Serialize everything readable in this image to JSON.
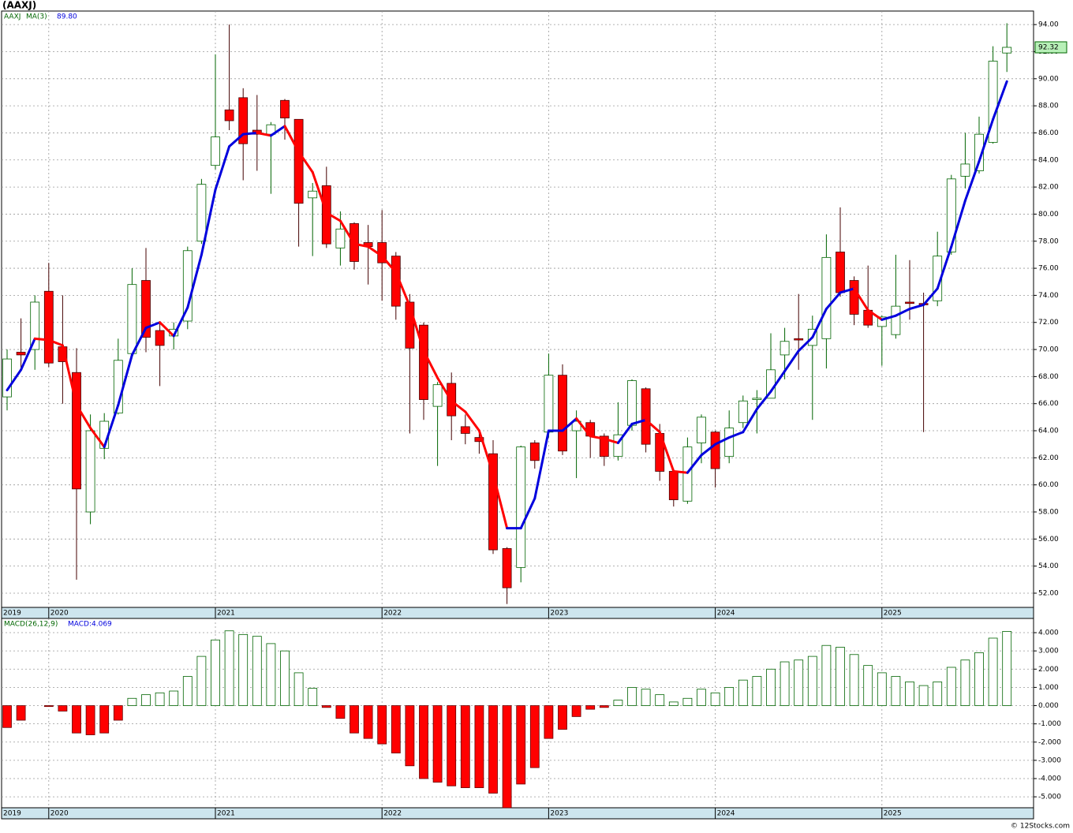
{
  "footer": "© 12Stocks.com",
  "chart_data": [
    {
      "type": "candlestick",
      "title": "(AAXJ)",
      "symbol": "AAXJ",
      "categories": [
        "2019",
        null,
        null,
        "2020",
        null,
        null,
        null,
        null,
        null,
        null,
        null,
        null,
        null,
        null,
        null,
        "2021",
        null,
        null,
        null,
        null,
        null,
        null,
        null,
        null,
        null,
        null,
        null,
        "2022",
        null,
        null,
        null,
        null,
        null,
        null,
        null,
        null,
        null,
        null,
        null,
        "2023",
        null,
        null,
        null,
        null,
        null,
        null,
        null,
        null,
        null,
        null,
        null,
        "2024",
        null,
        null,
        null,
        null,
        null,
        null,
        null,
        null,
        null,
        null,
        null,
        "2025",
        null,
        null,
        null,
        null,
        null,
        null,
        null,
        null,
        null
      ],
      "open": [
        66.5,
        69.8,
        70,
        74.3,
        70.2,
        68.3,
        58,
        62.7,
        65.3,
        69.7,
        75.1,
        71.4,
        71,
        72.1,
        78,
        83.6,
        87.7,
        88.6,
        86.2,
        85.9,
        88.4,
        87,
        81.2,
        82.1,
        77.5,
        79.3,
        77.9,
        77.9,
        76.9,
        73.5,
        71.8,
        65.8,
        67.5,
        64.3,
        63.5,
        62.3,
        55.3,
        53.9,
        63.1,
        63.9,
        68.1,
        64,
        64.6,
        63.6,
        62.1,
        64.4,
        67.1,
        63.8,
        61,
        58.8,
        63.1,
        63.9,
        62.1,
        64.6,
        66.3,
        66.4,
        69.6,
        70.8,
        70.3,
        70.8,
        77.2,
        75.1,
        72.9,
        71.7,
        71.1,
        73.5,
        73.4,
        73.6,
        77.2,
        82.8,
        83.2,
        85.3,
        91.9
      ],
      "high": [
        70,
        72.3,
        74,
        76.4,
        74,
        70.1,
        65.2,
        65.3,
        70.8,
        76,
        77.5,
        72,
        72,
        77.6,
        82.6,
        91.8,
        94,
        89.3,
        88.8,
        86.8,
        88.5,
        87,
        82.3,
        83.5,
        80.2,
        79.4,
        79.2,
        80.3,
        77.2,
        74.1,
        72,
        67.6,
        68.3,
        65.2,
        64,
        63.3,
        55.4,
        62.9,
        63.3,
        69.7,
        68.9,
        65.5,
        64.8,
        63.8,
        66.1,
        67.8,
        67.2,
        64.5,
        61.2,
        63.5,
        65.2,
        64,
        65.5,
        66.6,
        67,
        71.2,
        71.6,
        74.1,
        72.5,
        78.5,
        80.5,
        75.4,
        76.2,
        72.5,
        77,
        76.6,
        74.2,
        78.7,
        82.9,
        86,
        87.2,
        92.4,
        94.1
      ],
      "low": [
        65.5,
        68.5,
        68.5,
        68.7,
        66,
        53,
        57.1,
        61.9,
        65.2,
        69.5,
        69.8,
        67.3,
        70,
        71.5,
        77.8,
        83.3,
        86.2,
        82.5,
        83.2,
        81.5,
        85.5,
        77.6,
        76.9,
        77.5,
        76.2,
        75.9,
        74.8,
        73.6,
        72.2,
        63.8,
        64.8,
        61.4,
        63.3,
        63,
        62.3,
        54.9,
        51.2,
        52.8,
        61.2,
        63.5,
        62.2,
        60.5,
        62,
        61.4,
        61.8,
        64,
        62.4,
        60.3,
        58.4,
        58.6,
        61.6,
        59.8,
        61.6,
        64.2,
        63.8,
        66.4,
        67.8,
        68.5,
        64.8,
        68.6,
        73.9,
        71.8,
        71.6,
        68.8,
        70.8,
        72.2,
        63.9,
        73.2,
        77,
        81.9,
        83,
        85.2,
        90.5
      ],
      "close": [
        69.3,
        69.6,
        73.5,
        69,
        69.1,
        59.7,
        64,
        64.7,
        69.2,
        74.8,
        70.9,
        70.3,
        71.5,
        77.3,
        82.2,
        85.7,
        86.9,
        85.2,
        85.9,
        86.6,
        87.1,
        80.8,
        81.7,
        77.8,
        78.9,
        76.5,
        77.6,
        76.4,
        73.2,
        70.1,
        66.3,
        67.4,
        65.1,
        63.8,
        63.2,
        55.2,
        52.4,
        62.8,
        61.8,
        68.1,
        62.5,
        64.7,
        63.6,
        62.1,
        63.7,
        67.7,
        63,
        61,
        58.9,
        62.8,
        65,
        61.2,
        64.2,
        66.2,
        66.4,
        68.5,
        70.6,
        70.7,
        71.5,
        76.8,
        74.2,
        72.6,
        71.8,
        72.4,
        73.2,
        73.4,
        73.3,
        76.9,
        82.6,
        83.7,
        85.9,
        91.3,
        92.32
      ],
      "last_label": "92.32",
      "colors": {
        "up": "#006400",
        "down": "#ff0000",
        "ma_up": "#0000dd",
        "ma_down": "#ff0000"
      },
      "ma": {
        "name": "MA(3)",
        "value_label": "89.80",
        "values": [
          67,
          68.5,
          70.8,
          70.7,
          70.3,
          65.9,
          64.2,
          62.8,
          65.9,
          69.6,
          71.6,
          72,
          71,
          73.1,
          77,
          81.8,
          85,
          85.9,
          86,
          85.8,
          86.5,
          84.6,
          83.1,
          80.1,
          79.5,
          77.8,
          77.6,
          76.9,
          75.7,
          73.2,
          69.9,
          67.9,
          66.2,
          65.4,
          64,
          60.8,
          56.8,
          56.8,
          59,
          64,
          64,
          64.9,
          63.6,
          63.4,
          63.1,
          64.5,
          64.8,
          63.9,
          61,
          60.9,
          62.2,
          63,
          63.5,
          63.9,
          65.6,
          66.9,
          68.4,
          69.9,
          70.9,
          73,
          74.2,
          74.5,
          72.9,
          72.2,
          72.5,
          73,
          73.3,
          74.5,
          77.6,
          81,
          83.9,
          87,
          89.8
        ]
      },
      "ylim": [
        50.95,
        95
      ],
      "yticks": [
        {
          "value": 52,
          "label": "52.00"
        },
        {
          "value": 54,
          "label": "54.00"
        },
        {
          "value": 56,
          "label": "56.00"
        },
        {
          "value": 58,
          "label": "58.00"
        },
        {
          "value": 60,
          "label": "60.00"
        },
        {
          "value": 62,
          "label": "62.00"
        },
        {
          "value": 64,
          "label": "64.00"
        },
        {
          "value": 66,
          "label": "66.00"
        },
        {
          "value": 68,
          "label": "68.00"
        },
        {
          "value": 70,
          "label": "70.00"
        },
        {
          "value": 72,
          "label": "72.00"
        },
        {
          "value": 74,
          "label": "74.00"
        },
        {
          "value": 76,
          "label": "76.00"
        },
        {
          "value": 78,
          "label": "78.00"
        },
        {
          "value": 80,
          "label": "80.00"
        },
        {
          "value": 82,
          "label": "82.00"
        },
        {
          "value": 84,
          "label": "84.00"
        },
        {
          "value": 86,
          "label": "86.00"
        },
        {
          "value": 88,
          "label": "88.00"
        },
        {
          "value": 90,
          "label": "90.00"
        },
        {
          "value": 92,
          "label": "92.00"
        },
        {
          "value": 94,
          "label": "94.00"
        }
      ],
      "grid": true
    },
    {
      "type": "histogram",
      "title": "MACD(26,12,9)",
      "value_label": "MACD:4.069",
      "categories": [
        "2019",
        null,
        null,
        "2020",
        null,
        null,
        null,
        null,
        null,
        null,
        null,
        null,
        null,
        null,
        null,
        "2021",
        null,
        null,
        null,
        null,
        null,
        null,
        null,
        null,
        null,
        null,
        null,
        "2022",
        null,
        null,
        null,
        null,
        null,
        null,
        null,
        null,
        null,
        null,
        null,
        "2023",
        null,
        null,
        null,
        null,
        null,
        null,
        null,
        null,
        null,
        null,
        null,
        "2024",
        null,
        null,
        null,
        null,
        null,
        null,
        null,
        null,
        null,
        null,
        null,
        "2025",
        null,
        null,
        null,
        null,
        null,
        null,
        null,
        null,
        null
      ],
      "values": [
        -1.2,
        -0.8,
        0,
        -0.05,
        -0.3,
        -1.5,
        -1.6,
        -1.5,
        -0.8,
        0.4,
        0.6,
        0.7,
        0.8,
        1.6,
        2.7,
        3.6,
        4.1,
        3.9,
        3.8,
        3.4,
        3,
        1.8,
        0.95,
        -0.1,
        -0.7,
        -1.5,
        -1.8,
        -2.1,
        -2.6,
        -3.3,
        -4,
        -4.2,
        -4.4,
        -4.5,
        -4.5,
        -4.8,
        -5.6,
        -4.3,
        -3.4,
        -1.8,
        -1.3,
        -0.6,
        -0.2,
        -0.1,
        0.3,
        1,
        0.9,
        0.6,
        0.2,
        0.4,
        0.9,
        0.7,
        1,
        1.4,
        1.6,
        2,
        2.4,
        2.5,
        2.7,
        3.3,
        3.2,
        2.8,
        2.2,
        1.8,
        1.6,
        1.3,
        1.1,
        1.3,
        2.1,
        2.5,
        2.9,
        3.7,
        4.069
      ],
      "colors": {
        "up": "#006400",
        "down": "#ff0000"
      },
      "ylim": [
        -5.6,
        4.78
      ],
      "yticks": [
        {
          "value": -5,
          "label": "-5.000"
        },
        {
          "value": -4,
          "label": "-4.000"
        },
        {
          "value": -3,
          "label": "-3.000"
        },
        {
          "value": -2,
          "label": "-2.000"
        },
        {
          "value": -1,
          "label": "-1.000"
        },
        {
          "value": 0,
          "label": "0.000"
        },
        {
          "value": 1,
          "label": "1.000"
        },
        {
          "value": 2,
          "label": "2.000"
        },
        {
          "value": 3,
          "label": "3.000"
        },
        {
          "value": 4,
          "label": "4.000"
        }
      ],
      "grid": true
    }
  ]
}
